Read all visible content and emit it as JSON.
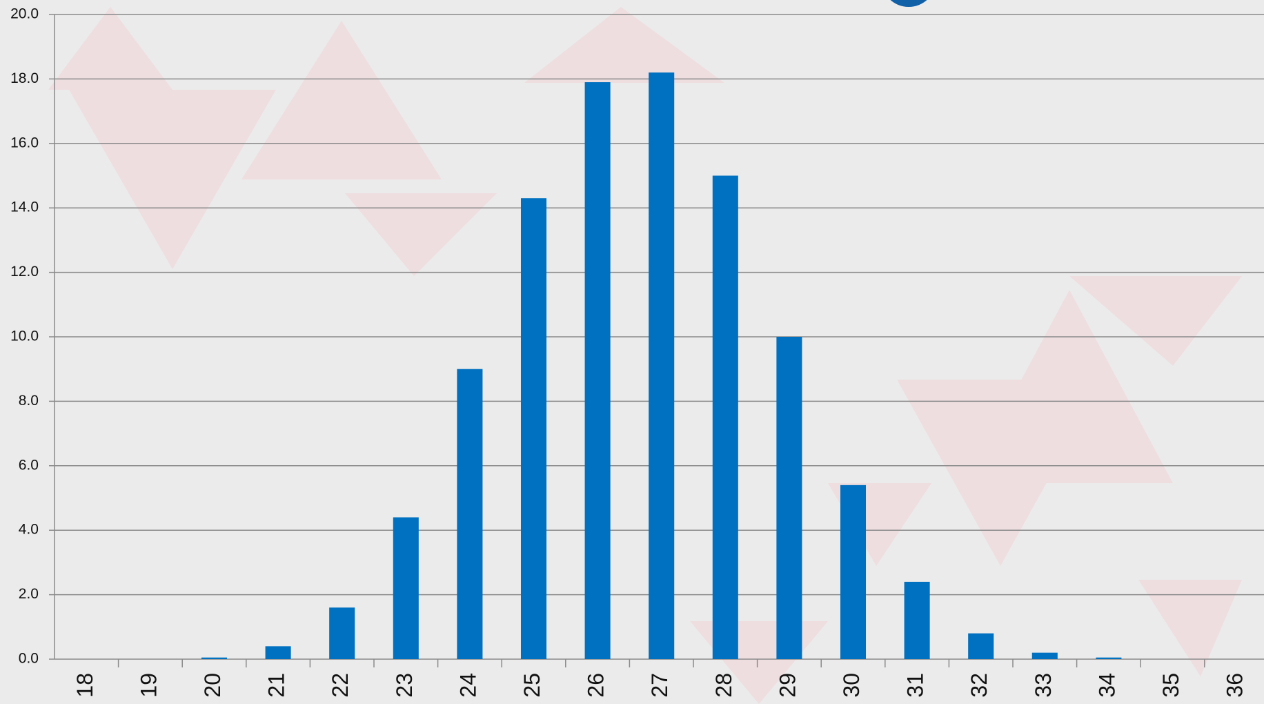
{
  "chart_data": {
    "type": "bar",
    "categories": [
      "18",
      "19",
      "20",
      "21",
      "22",
      "23",
      "24",
      "25",
      "26",
      "27",
      "28",
      "29",
      "30",
      "31",
      "32",
      "33",
      "34",
      "35",
      "36"
    ],
    "values": [
      0,
      0,
      0.05,
      0.4,
      1.6,
      4.4,
      9.0,
      14.3,
      17.9,
      18.2,
      15.0,
      10.0,
      5.4,
      2.4,
      0.8,
      0.2,
      0.05,
      0,
      0
    ],
    "color": "#0070c0",
    "ylim": [
      0,
      20
    ],
    "yticks": [
      {
        "value": 0,
        "label": "0.0"
      },
      {
        "value": 2,
        "label": "2.0"
      },
      {
        "value": 4,
        "label": "4.0"
      },
      {
        "value": 6,
        "label": "6.0"
      },
      {
        "value": 8,
        "label": "8.0"
      },
      {
        "value": 10,
        "label": "10.0"
      },
      {
        "value": 12,
        "label": "12.0"
      },
      {
        "value": 14,
        "label": "14.0"
      },
      {
        "value": 16,
        "label": "16.0"
      },
      {
        "value": 18,
        "label": "18.0"
      },
      {
        "value": 20,
        "label": "20.0"
      }
    ],
    "grid": true
  }
}
